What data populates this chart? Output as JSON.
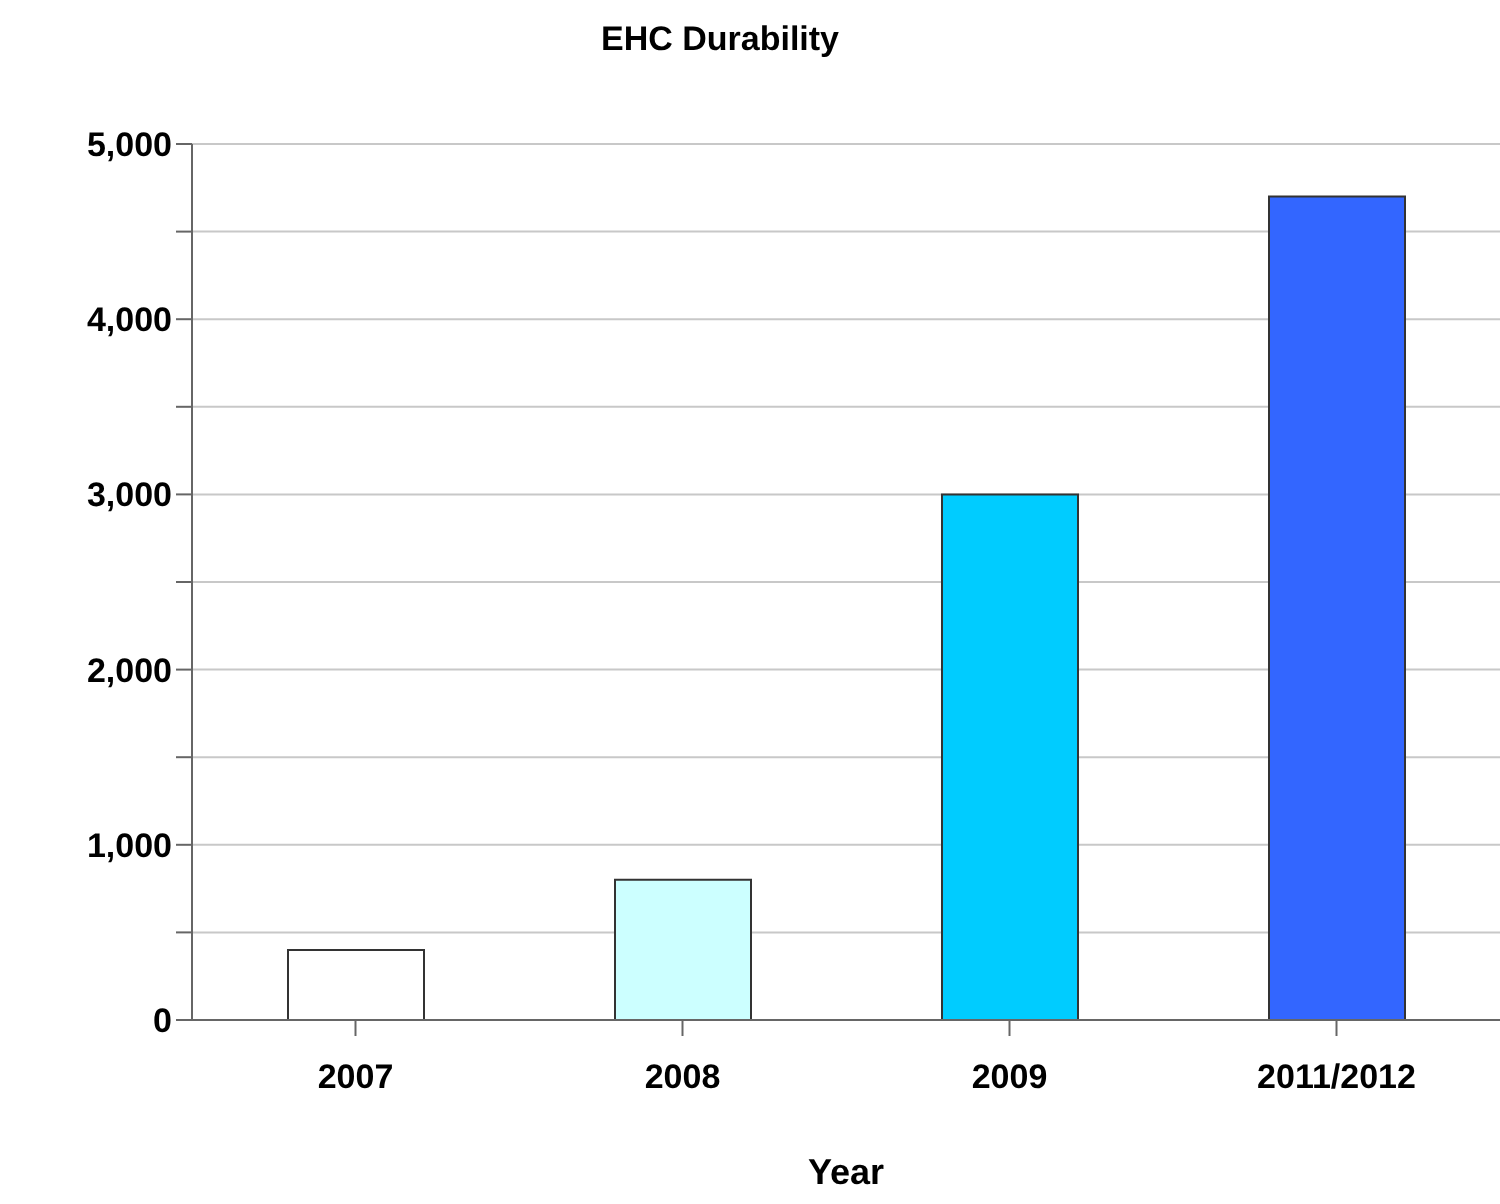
{
  "chart_data": {
    "type": "bar",
    "title": "EHC Durability",
    "xlabel": "Year",
    "categories": [
      "2007",
      "2008",
      "2009",
      "2011/2012"
    ],
    "values": [
      400,
      800,
      3000,
      4700
    ],
    "colors": [
      "#ffffff",
      "#ccffff",
      "#00ccff",
      "#3366ff"
    ],
    "ylim": [
      0,
      5000
    ],
    "yticks": [
      0,
      {
        "value": 500,
        "label": null
      },
      {
        "value": 1000,
        "label": "1,000"
      },
      {
        "value": 1500,
        "label": null
      },
      {
        "value": 2000,
        "label": "2,000"
      },
      {
        "value": 2500,
        "label": null
      },
      {
        "value": 3000,
        "label": "3,000"
      },
      {
        "value": 3500,
        "label": null
      },
      {
        "value": 4000,
        "label": "4,000"
      },
      {
        "value": 4500,
        "label": null
      },
      {
        "value": 5000,
        "label": "5,000"
      }
    ],
    "grid": "y"
  }
}
